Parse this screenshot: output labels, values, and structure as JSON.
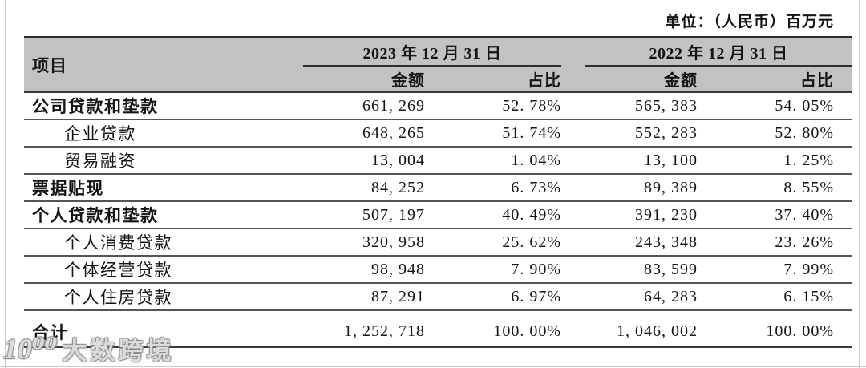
{
  "unit_label": "单位：（人民币）百万元",
  "table": {
    "item_header": "项目",
    "groups": [
      {
        "title": "2023 年 12 月 31 日",
        "cols": [
          "金额",
          "占比"
        ]
      },
      {
        "title": "2022 年 12 月 31 日",
        "cols": [
          "金额",
          "占比"
        ]
      }
    ],
    "rows": [
      {
        "label": "公司贷款和垫款",
        "indent": 0,
        "bold": true,
        "total": false,
        "values": [
          "661, 269",
          "52. 78%",
          "565, 383",
          "54. 05%"
        ]
      },
      {
        "label": "企业贷款",
        "indent": 1,
        "bold": false,
        "total": false,
        "values": [
          "648, 265",
          "51. 74%",
          "552, 283",
          "52. 80%"
        ]
      },
      {
        "label": "贸易融资",
        "indent": 1,
        "bold": false,
        "total": false,
        "values": [
          "13, 004",
          "1. 04%",
          "13, 100",
          "1. 25%"
        ]
      },
      {
        "label": "票据贴现",
        "indent": 0,
        "bold": true,
        "total": false,
        "values": [
          "84, 252",
          "6. 73%",
          "89, 389",
          "8. 55%"
        ]
      },
      {
        "label": "个人贷款和垫款",
        "indent": 0,
        "bold": true,
        "total": false,
        "values": [
          "507, 197",
          "40. 49%",
          "391, 230",
          "37. 40%"
        ]
      },
      {
        "label": "个人消费贷款",
        "indent": 1,
        "bold": false,
        "total": false,
        "values": [
          "320, 958",
          "25. 62%",
          "243, 348",
          "23. 26%"
        ]
      },
      {
        "label": "个体经营贷款",
        "indent": 1,
        "bold": false,
        "total": false,
        "values": [
          "98, 948",
          "7. 90%",
          "83, 599",
          "7. 99%"
        ]
      },
      {
        "label": "个人住房贷款",
        "indent": 1,
        "bold": false,
        "total": false,
        "values": [
          "87, 291",
          "6. 97%",
          "64, 283",
          "6. 15%"
        ]
      },
      {
        "label": "合计",
        "indent": 0,
        "bold": true,
        "total": true,
        "values": [
          "1, 252, 718",
          "100. 00%",
          "1, 046, 002",
          "100. 00%"
        ]
      }
    ]
  },
  "watermark": {
    "logo_glyph": "10⁰⁰",
    "text": "大数跨境"
  },
  "colors": {
    "header_bg": "#c2c2c2",
    "rule_dark": "#3b3b3b",
    "rule_row": "#555555",
    "page_border": "#c9c9c9",
    "text": "#141414"
  }
}
